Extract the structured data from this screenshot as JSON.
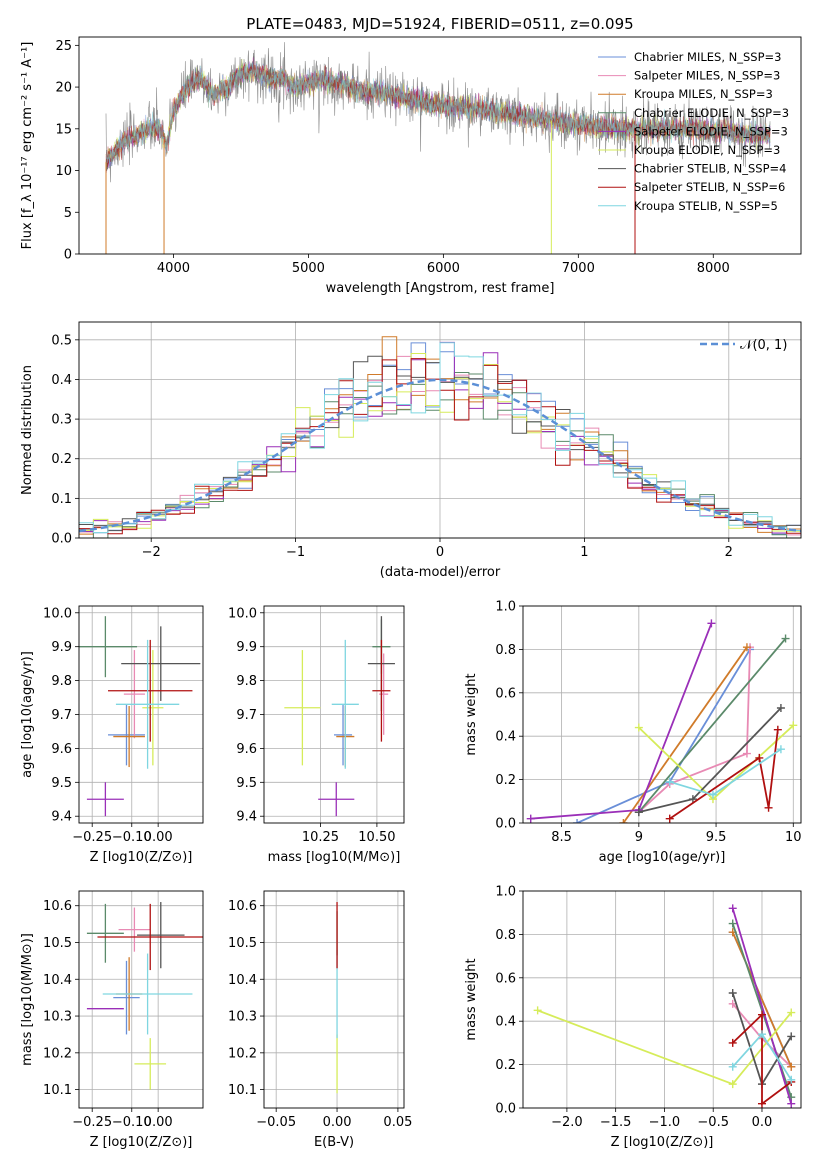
{
  "figure_title": "PLATE=0483, MJD=51924, FIBERID=0511, z=0.095",
  "model_colors": {
    "Chabrier MILES": "#6a8fd8",
    "Salpeter MILES": "#e88ab4",
    "Kroupa MILES": "#d07b2a",
    "Chabrier ELODIE": "#5b8a6a",
    "Salpeter ELODIE": "#9a2fb8",
    "Kroupa ELODIE": "#d6ec5a",
    "Chabrier STELIB": "#555555",
    "Salpeter STELIB": "#b01010",
    "Kroupa STELIB": "#7fd6e0"
  },
  "chart_data": [
    {
      "id": "spectrum",
      "type": "line",
      "xlabel": "wavelength [Angstrom, rest frame]",
      "ylabel": "Flux [f_λ 10⁻¹⁷ erg cm⁻² s⁻¹ A⁻¹]",
      "xlim": [
        3300,
        8650
      ],
      "ylim": [
        0,
        26
      ],
      "xticks": [
        4000,
        5000,
        6000,
        7000,
        8000
      ],
      "yticks": [
        0,
        5,
        10,
        15,
        20,
        25
      ],
      "grid": false,
      "legend_position": "top-right",
      "data_color": "#888888",
      "continuum": {
        "x": [
          3500,
          3600,
          3700,
          3800,
          3900,
          3950,
          4000,
          4100,
          4200,
          4300,
          4400,
          4500,
          4600,
          4700,
          4800,
          4900,
          5000,
          5100,
          5200,
          5300,
          5400,
          5500,
          5600,
          5700,
          5800,
          5900,
          6000,
          6200,
          6400,
          6600,
          6800,
          7000,
          7200,
          7400,
          7600,
          7800,
          8000,
          8200,
          8400
        ],
        "y": [
          11,
          13,
          14,
          15,
          15,
          13,
          17,
          20,
          21,
          19,
          20,
          21.5,
          22,
          21,
          21,
          20,
          20.5,
          21,
          20.5,
          20,
          19.5,
          19.5,
          19,
          18.8,
          18.5,
          18,
          17.8,
          17.5,
          17,
          16.5,
          16,
          15.5,
          15.2,
          15,
          15,
          15,
          14.8,
          14.5,
          14.2
        ]
      },
      "series": [
        {
          "name": "Chabrier MILES, N_SSP=3",
          "model": "Chabrier MILES"
        },
        {
          "name": "Salpeter MILES, N_SSP=3",
          "model": "Salpeter MILES"
        },
        {
          "name": "Kroupa MILES, N_SSP=3",
          "model": "Kroupa MILES"
        },
        {
          "name": "Chabrier ELODIE, N_SSP=3",
          "model": "Chabrier ELODIE"
        },
        {
          "name": "Salpeter ELODIE, N_SSP=3",
          "model": "Salpeter ELODIE"
        },
        {
          "name": "Kroupa ELODIE, N_SSP=3",
          "model": "Kroupa ELODIE"
        },
        {
          "name": "Chabrier STELIB, N_SSP=4",
          "model": "Chabrier STELIB"
        },
        {
          "name": "Salpeter STELIB, N_SSP=6",
          "model": "Salpeter STELIB"
        },
        {
          "name": "Kroupa STELIB, N_SSP=5",
          "model": "Kroupa STELIB"
        }
      ]
    },
    {
      "id": "residuals",
      "type": "line",
      "xlabel": "(data-model)/error",
      "ylabel": "Normed distribution",
      "xlim": [
        -2.5,
        2.5
      ],
      "ylim": [
        0,
        0.545
      ],
      "xticks": [
        -2,
        -1,
        0,
        1,
        2
      ],
      "yticks": [
        0.0,
        0.1,
        0.2,
        0.3,
        0.4,
        0.5
      ],
      "grid": true,
      "legend_position": "top-right",
      "reference": {
        "name": "N(0,1)",
        "mean": 0,
        "sigma": 1,
        "color": "#5b8fd6",
        "style": "dashed"
      },
      "histograms": "step outlines per model, bin width 0.1"
    },
    {
      "id": "age_vs_Z",
      "type": "scatter",
      "xlabel": "Z [log10(Z/Z⊙)]",
      "ylabel": "age [log10(age/yr)]",
      "xlim": [
        -0.3,
        0.17
      ],
      "ylim": [
        9.38,
        10.02
      ],
      "xticks": [
        -0.25,
        -0.1,
        0.0
      ],
      "xtick_labels": [
        "−0.25",
        "−0.10",
        "0.00"
      ],
      "yticks": [
        9.4,
        9.5,
        9.6,
        9.7,
        9.8,
        9.9,
        10.0
      ],
      "grid": true,
      "points": [
        {
          "model": "Chabrier MILES",
          "x": -0.12,
          "xerr": 0.07,
          "y": 9.64,
          "yerr": 0.09
        },
        {
          "model": "Salpeter MILES",
          "x": -0.09,
          "xerr": 0.04,
          "y": 9.76,
          "yerr": 0.13
        },
        {
          "model": "Kroupa MILES",
          "x": -0.11,
          "xerr": 0.06,
          "y": 9.635,
          "yerr": 0.09
        },
        {
          "model": "Chabrier ELODIE",
          "x": -0.2,
          "xerr": 0.12,
          "y": 9.9,
          "yerr": 0.09
        },
        {
          "model": "Salpeter ELODIE",
          "x": -0.2,
          "xerr": 0.07,
          "y": 9.45,
          "yerr": 0.05
        },
        {
          "model": "Kroupa ELODIE",
          "x": -0.02,
          "xerr": 0.04,
          "y": 9.72,
          "yerr": 0.17
        },
        {
          "model": "Chabrier STELIB",
          "x": 0.01,
          "xerr": 0.15,
          "y": 9.85,
          "yerr": 0.11
        },
        {
          "model": "Salpeter STELIB",
          "x": -0.03,
          "xerr": 0.16,
          "y": 9.77,
          "yerr": 0.15
        },
        {
          "model": "Kroupa STELIB",
          "x": -0.04,
          "xerr": 0.12,
          "y": 9.73,
          "yerr": 0.19
        }
      ]
    },
    {
      "id": "age_vs_mass",
      "type": "scatter",
      "xlabel": "mass [log10(M/M⊙)]",
      "ylabel": "",
      "xlim": [
        10.0,
        10.62
      ],
      "ylim": [
        9.38,
        10.02
      ],
      "xticks": [
        10.25,
        10.5
      ],
      "xtick_labels": [
        "10.25",
        "10.50"
      ],
      "yticks": [
        9.4,
        9.5,
        9.6,
        9.7,
        9.8,
        9.9,
        10.0
      ],
      "grid": true,
      "points": [
        {
          "model": "Chabrier MILES",
          "x": 10.35,
          "xerr": 0.04,
          "y": 9.64,
          "yerr": 0.09
        },
        {
          "model": "Salpeter MILES",
          "x": 10.53,
          "xerr": 0.02,
          "y": 9.76,
          "yerr": 0.12
        },
        {
          "model": "Kroupa MILES",
          "x": 10.36,
          "xerr": 0.04,
          "y": 9.635,
          "yerr": 0.09
        },
        {
          "model": "Chabrier ELODIE",
          "x": 10.52,
          "xerr": 0.04,
          "y": 9.9,
          "yerr": 0.08
        },
        {
          "model": "Salpeter ELODIE",
          "x": 10.32,
          "xerr": 0.08,
          "y": 9.45,
          "yerr": 0.05
        },
        {
          "model": "Kroupa ELODIE",
          "x": 10.17,
          "xerr": 0.08,
          "y": 9.72,
          "yerr": 0.17
        },
        {
          "model": "Chabrier STELIB",
          "x": 10.52,
          "xerr": 0.06,
          "y": 9.85,
          "yerr": 0.14
        },
        {
          "model": "Salpeter STELIB",
          "x": 10.52,
          "xerr": 0.04,
          "y": 9.77,
          "yerr": 0.15
        },
        {
          "model": "Kroupa STELIB",
          "x": 10.36,
          "xerr": 0.06,
          "y": 9.73,
          "yerr": 0.19
        }
      ]
    },
    {
      "id": "mass_weight_vs_age",
      "type": "line",
      "xlabel": "age [log10(age/yr)]",
      "ylabel": "mass weight",
      "xlim": [
        8.25,
        10.05
      ],
      "ylim": [
        0,
        1.0
      ],
      "xticks": [
        8.5,
        9.0,
        9.5,
        10.0
      ],
      "yticks": [
        0.0,
        0.2,
        0.4,
        0.6,
        0.8,
        1.0
      ],
      "grid": true,
      "series": [
        {
          "model": "Chabrier MILES",
          "x": [
            8.6,
            9.2,
            9.72
          ],
          "y": [
            0.0,
            0.19,
            0.8
          ]
        },
        {
          "model": "Salpeter MILES",
          "x": [
            9.0,
            9.2,
            9.7,
            9.72
          ],
          "y": [
            0.05,
            0.18,
            0.32,
            0.81
          ]
        },
        {
          "model": "Kroupa MILES",
          "x": [
            8.9,
            9.7
          ],
          "y": [
            0.0,
            0.81
          ]
        },
        {
          "model": "Chabrier ELODIE",
          "x": [
            9.0,
            9.95
          ],
          "y": [
            0.05,
            0.85
          ]
        },
        {
          "model": "Salpeter ELODIE",
          "x": [
            8.3,
            9.0,
            9.47
          ],
          "y": [
            0.02,
            0.06,
            0.92
          ]
        },
        {
          "model": "Kroupa ELODIE",
          "x": [
            9.0,
            9.48,
            10.0
          ],
          "y": [
            0.44,
            0.11,
            0.45
          ]
        },
        {
          "model": "Chabrier STELIB",
          "x": [
            9.0,
            9.35,
            9.92
          ],
          "y": [
            0.05,
            0.11,
            0.53
          ]
        },
        {
          "model": "Salpeter STELIB",
          "x": [
            9.2,
            9.78,
            9.84,
            9.9
          ],
          "y": [
            0.02,
            0.3,
            0.07,
            0.43
          ]
        },
        {
          "model": "Kroupa STELIB",
          "x": [
            9.2,
            9.48,
            9.92
          ],
          "y": [
            0.19,
            0.13,
            0.34
          ]
        }
      ]
    },
    {
      "id": "mass_vs_Z",
      "type": "scatter",
      "xlabel": "Z [log10(Z/Z⊙)]",
      "ylabel": "mass [log10(M/M⊙)]",
      "xlim": [
        -0.3,
        0.17
      ],
      "ylim": [
        10.05,
        10.64
      ],
      "xticks": [
        -0.25,
        -0.1,
        0.0
      ],
      "xtick_labels": [
        "−0.25",
        "−0.10",
        "0.00"
      ],
      "yticks": [
        10.1,
        10.2,
        10.3,
        10.4,
        10.5,
        10.6
      ],
      "grid": true,
      "points": [
        {
          "model": "Chabrier MILES",
          "x": -0.12,
          "xerr": 0.05,
          "y": 10.35,
          "yerr": 0.1
        },
        {
          "model": "Salpeter MILES",
          "x": -0.09,
          "xerr": 0.06,
          "y": 10.535,
          "yerr": 0.06
        },
        {
          "model": "Kroupa MILES",
          "x": -0.11,
          "xerr": 0.05,
          "y": 10.36,
          "yerr": 0.1
        },
        {
          "model": "Chabrier ELODIE",
          "x": -0.2,
          "xerr": 0.07,
          "y": 10.525,
          "yerr": 0.08
        },
        {
          "model": "Salpeter ELODIE",
          "x": -0.2,
          "xerr": 0.07,
          "y": 10.32,
          "yerr": 0.0
        },
        {
          "model": "Kroupa ELODIE",
          "x": -0.03,
          "xerr": 0.06,
          "y": 10.17,
          "yerr": 0.07
        },
        {
          "model": "Chabrier STELIB",
          "x": 0.01,
          "xerr": 0.09,
          "y": 10.52,
          "yerr": 0.09
        },
        {
          "model": "Salpeter STELIB",
          "x": -0.03,
          "xerr": 0.2,
          "y": 10.515,
          "yerr": 0.09
        },
        {
          "model": "Kroupa STELIB",
          "x": -0.04,
          "xerr": 0.17,
          "y": 10.36,
          "yerr": 0.11
        }
      ]
    },
    {
      "id": "mass_vs_ebv",
      "type": "scatter",
      "xlabel": "E(B-V)",
      "ylabel": "",
      "xlim": [
        -0.06,
        0.055
      ],
      "ylim": [
        10.05,
        10.64
      ],
      "xticks": [
        -0.05,
        0.0,
        0.05
      ],
      "xtick_labels": [
        "−0.05",
        "0.00",
        "0.05"
      ],
      "yticks": [
        10.1,
        10.2,
        10.3,
        10.4,
        10.5,
        10.6
      ],
      "grid": true,
      "points": [
        {
          "model": "Kroupa ELODIE",
          "x": 0.0,
          "xerr": 0.0,
          "y": 10.17,
          "yerr": 0.08
        },
        {
          "model": "Kroupa STELIB",
          "x": 0.0,
          "xerr": 0.0,
          "y": 10.36,
          "yerr": 0.12
        },
        {
          "model": "Chabrier ELODIE",
          "x": 0.0,
          "xerr": 0.0,
          "y": 10.525,
          "yerr": 0.06
        },
        {
          "model": "Salpeter STELIB",
          "x": 0.0,
          "xerr": 0.0,
          "y": 10.52,
          "yerr": 0.09
        }
      ]
    },
    {
      "id": "mass_weight_vs_Z",
      "type": "line",
      "xlabel": "Z [log10(Z/Z⊙)]",
      "ylabel": "mass weight",
      "xlim": [
        -2.45,
        0.4
      ],
      "ylim": [
        0,
        1.0
      ],
      "xticks": [
        -2.0,
        -1.5,
        -1.0,
        -0.5,
        0.0
      ],
      "xtick_labels": [
        "−2.0",
        "−1.5",
        "−1.0",
        "−0.5",
        "0.0"
      ],
      "yticks": [
        0.0,
        0.2,
        0.4,
        0.6,
        0.8,
        1.0
      ],
      "grid": true,
      "series": [
        {
          "model": "Chabrier MILES",
          "x": [
            -0.3,
            0.3
          ],
          "y": [
            0.81,
            0.19
          ]
        },
        {
          "model": "Salpeter MILES",
          "x": [
            -0.3,
            0.0,
            0.3
          ],
          "y": [
            0.48,
            0.32,
            0.19
          ]
        },
        {
          "model": "Kroupa MILES",
          "x": [
            -0.3,
            0.3
          ],
          "y": [
            0.81,
            0.19
          ]
        },
        {
          "model": "Chabrier ELODIE",
          "x": [
            -0.3,
            0.3
          ],
          "y": [
            0.85,
            0.05
          ]
        },
        {
          "model": "Salpeter ELODIE",
          "x": [
            -0.3,
            0.3
          ],
          "y": [
            0.92,
            0.02
          ]
        },
        {
          "model": "Kroupa ELODIE",
          "x": [
            -2.3,
            -0.3,
            0.3
          ],
          "y": [
            0.45,
            0.11,
            0.44
          ]
        },
        {
          "model": "Chabrier STELIB",
          "x": [
            -0.3,
            0.0,
            0.3
          ],
          "y": [
            0.53,
            0.11,
            0.33
          ]
        },
        {
          "model": "Salpeter STELIB",
          "x": [
            -0.3,
            0.0,
            0.0,
            0.3
          ],
          "y": [
            0.3,
            0.43,
            0.02,
            0.12
          ]
        },
        {
          "model": "Kroupa STELIB",
          "x": [
            -0.3,
            0.0,
            0.3
          ],
          "y": [
            0.19,
            0.34,
            0.13
          ]
        }
      ]
    }
  ]
}
